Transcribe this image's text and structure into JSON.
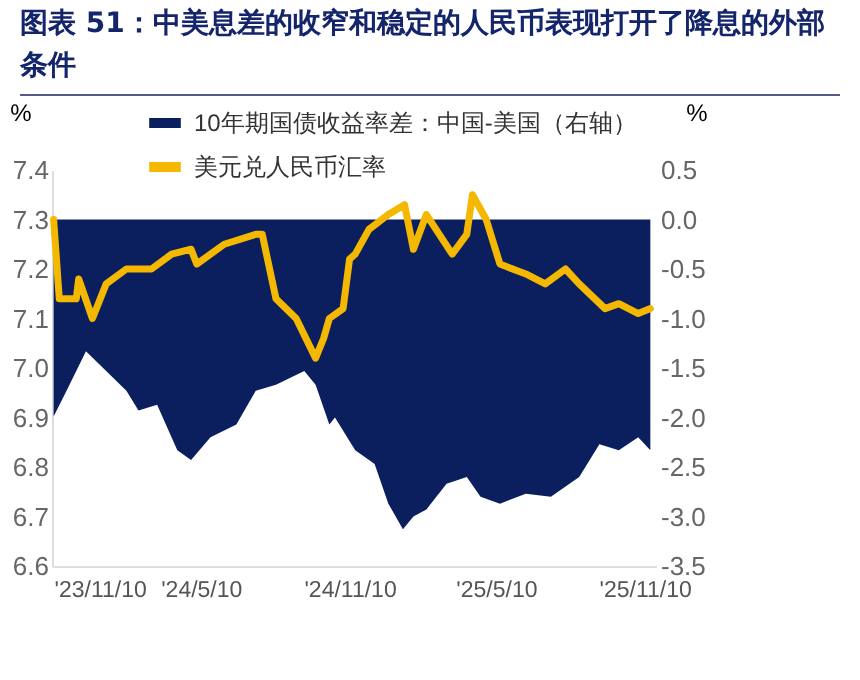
{
  "chart_data": {
    "type": "line",
    "title": "图表 51：中美息差的收窄和稳定的人民币表现打开了降息的外部条件",
    "ylabel": "%",
    "y2label": "%",
    "xlim": [
      "2023-11-08",
      "2025-11-24"
    ],
    "xticks": [
      {
        "value": "2023-11-10",
        "label": "'23/11/10"
      },
      {
        "value": "2024-05-10",
        "label": "'24/5/10"
      },
      {
        "value": "2024-11-10",
        "label": "'24/11/10"
      },
      {
        "value": "2025-05-10",
        "label": "'25/5/10"
      },
      {
        "value": "2025-11-10",
        "label": "'25/11/10"
      }
    ],
    "ylim": [
      6.6,
      7.4
    ],
    "yticks": [
      6.6,
      6.7,
      6.8,
      6.9,
      {
        "value": 7,
        "label": "7.0"
      },
      7.1,
      7.2,
      7.3,
      7.4
    ],
    "y2lim": [
      -3.5,
      0.5
    ],
    "y2ticks": [
      -3.5,
      {
        "value": -3,
        "label": "-3.0"
      },
      -2.5,
      {
        "value": -2,
        "label": "-2.0"
      },
      -1.5,
      {
        "value": -1,
        "label": "-1.0"
      },
      -0.5,
      {
        "value": 0,
        "label": "0.0"
      },
      0.5
    ],
    "legend": "top",
    "grid": false,
    "series": [
      {
        "name": "10年期国债收益率差：中国-美国（右轴）",
        "type": "area",
        "axis": "y2",
        "color": "#0b1f5e",
        "x": [
          "2023-11-10",
          "2023-11-26",
          "2023-12-20",
          "2024-01-14",
          "2024-02-08",
          "2024-02-23",
          "2024-03-17",
          "2024-04-11",
          "2024-04-28",
          "2024-05-22",
          "2024-06-23",
          "2024-07-17",
          "2024-08-11",
          "2024-09-15",
          "2024-09-29",
          "2024-10-16",
          "2024-10-23",
          "2024-11-17",
          "2024-12-11",
          "2024-12-28",
          "2025-01-15",
          "2025-01-28",
          "2025-02-13",
          "2025-03-10",
          "2025-04-04",
          "2025-04-21",
          "2025-05-15",
          "2025-06-16",
          "2025-07-17",
          "2025-08-21",
          "2025-09-15",
          "2025-10-09",
          "2025-11-02",
          "2025-11-17"
        ],
        "values": [
          -1.99,
          -1.73,
          -1.33,
          -1.53,
          -1.73,
          -1.93,
          -1.87,
          -2.33,
          -2.43,
          -2.2,
          -2.07,
          -1.73,
          -1.67,
          -1.53,
          -1.67,
          -2.07,
          -2.0,
          -2.33,
          -2.47,
          -2.87,
          -3.13,
          -3.0,
          -2.93,
          -2.67,
          -2.6,
          -2.8,
          -2.87,
          -2.77,
          -2.8,
          -2.6,
          -2.27,
          -2.33,
          -2.2,
          -2.33
        ]
      },
      {
        "name": "美元兑人民币汇率",
        "type": "line",
        "color": "#f5b800",
        "x": [
          "2023-11-10",
          "2023-11-17",
          "2023-12-08",
          "2023-12-11",
          "2023-12-28",
          "2024-01-14",
          "2024-02-08",
          "2024-03-10",
          "2024-04-04",
          "2024-04-28",
          "2024-05-05",
          "2024-06-08",
          "2024-07-17",
          "2024-07-25",
          "2024-08-11",
          "2024-09-05",
          "2024-09-29",
          "2024-10-09",
          "2024-10-16",
          "2024-11-02",
          "2024-11-10",
          "2024-11-17",
          "2024-12-04",
          "2024-12-28",
          "2025-01-17",
          "2025-01-28",
          "2025-02-13",
          "2025-03-17",
          "2025-04-04",
          "2025-04-11",
          "2025-04-28",
          "2025-05-15",
          "2025-06-16",
          "2025-07-10",
          "2025-08-04",
          "2025-08-21",
          "2025-09-22",
          "2025-10-09",
          "2025-11-02",
          "2025-11-17"
        ],
        "values": [
          7.3,
          7.14,
          7.14,
          7.18,
          7.1,
          7.17,
          7.2,
          7.2,
          7.23,
          7.24,
          7.21,
          7.25,
          7.27,
          7.27,
          7.14,
          7.1,
          7.02,
          7.06,
          7.1,
          7.12,
          7.22,
          7.23,
          7.28,
          7.31,
          7.33,
          7.24,
          7.31,
          7.23,
          7.27,
          7.35,
          7.3,
          7.21,
          7.19,
          7.17,
          7.2,
          7.17,
          7.12,
          7.13,
          7.11,
          7.12
        ]
      }
    ]
  }
}
